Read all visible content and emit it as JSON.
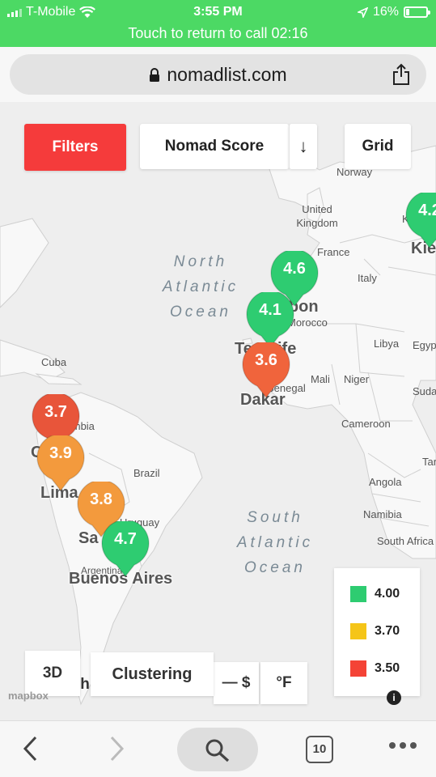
{
  "status": {
    "carrier": "T-Mobile",
    "time": "3:55 PM",
    "battery": "16%",
    "battery_level": 0.16,
    "call_banner": "Touch to return to call 02:16"
  },
  "browser": {
    "url": "nomadlist.com",
    "tab_count": "10"
  },
  "toolbar": {
    "filters": "Filters",
    "sort_field": "Nomad Score",
    "sort_direction": "↓",
    "view": "Grid"
  },
  "map": {
    "oceans": {
      "north_atlantic": [
        "North",
        "Atlantic",
        "Ocean"
      ],
      "south_atlantic": [
        "South",
        "Atlantic",
        "Ocean"
      ]
    },
    "places": [
      "Norway",
      "United Kingdom",
      "France",
      "Italy",
      "Morocco",
      "Libya",
      "Egyp",
      "Mali",
      "Niger",
      "Suda",
      "Senegal",
      "Cameroon",
      "Cuba",
      "Colombia",
      "Brazil",
      "Angola",
      "Namibia",
      "South Africa",
      "Argentina",
      "Uruguay",
      "Tar",
      "Ki"
    ],
    "cities": [
      "Lisbon",
      "Tenerife",
      "Dakar",
      "Lima",
      "Buenos Aires",
      "Sa",
      "C",
      "Kie"
    ],
    "markers": [
      {
        "score": "4.2",
        "color": "#2ecc71"
      },
      {
        "score": "4.6",
        "color": "#2ecc71"
      },
      {
        "score": "4.1",
        "color": "#2ecc71"
      },
      {
        "score": "3.6",
        "color": "#f0643c"
      },
      {
        "score": "3.7",
        "color": "#e8553a"
      },
      {
        "score": "3.9",
        "color": "#f39a3d"
      },
      {
        "score": "3.8",
        "color": "#f39a3d"
      },
      {
        "score": "4.7",
        "color": "#2ecc71"
      }
    ]
  },
  "legend": [
    {
      "label": "4.00",
      "color": "#2ecc71"
    },
    {
      "label": "3.70",
      "color": "#f5c518"
    },
    {
      "label": "3.50",
      "color": "#f44336"
    }
  ],
  "controls": {
    "three_d": "3D",
    "clustering": "Clustering",
    "currency": "— $",
    "temperature": "°F",
    "hidden_h": "h",
    "mapbox": "mapbox",
    "info": "i"
  },
  "icons": [
    "lock-icon",
    "share-icon",
    "back-icon",
    "forward-icon",
    "search-icon",
    "tabs-icon",
    "more-icon",
    "wifi-icon",
    "location-icon"
  ]
}
